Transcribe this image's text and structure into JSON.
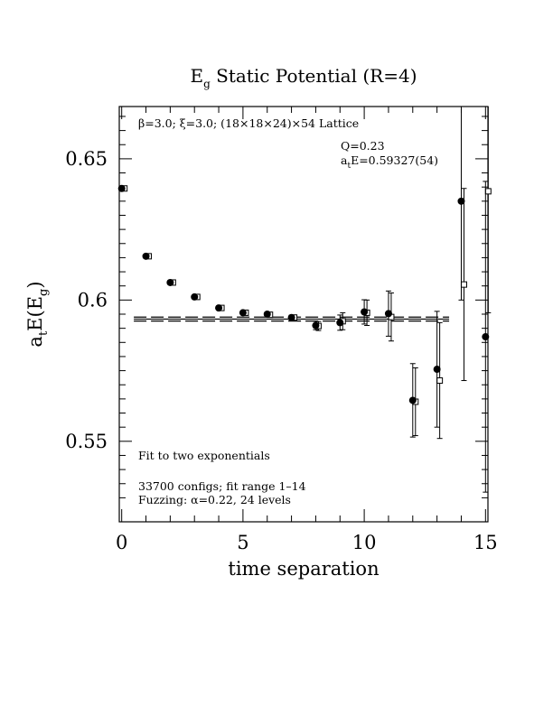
{
  "chart_data": {
    "type": "scatter",
    "title_main": "E",
    "title_sub": "g",
    "title_rest": " Static Potential (R=4)",
    "ylabel_main": "a",
    "ylabel_sub1": "t",
    "ylabel_mid": "E(E",
    "ylabel_sub2": "g",
    "ylabel_end": ")",
    "xlabel": "time separation",
    "lattice_label": "β=3.0; ξ=3.0; (18×18×24)×54 Lattice",
    "q_label": "Q=0.23",
    "energy_label_main": "a",
    "energy_label_sub": "t",
    "energy_label_rest": "E=0.59327(54)",
    "fit_label": "Fit to two exponentials",
    "configs_label": "33700 configs; fit range 1–14",
    "fuzzing_label": "Fuzzing: α=0.22, 24 levels",
    "xlim": [
      -0.1,
      15.1
    ],
    "ylim": [
      0.5215,
      0.6685
    ],
    "xticks": [
      0,
      5,
      10,
      15
    ],
    "xtick_labels": [
      "0",
      "5",
      "10",
      "15"
    ],
    "yticks": [
      0.55,
      0.6,
      0.65
    ],
    "ytick_labels": [
      "0.55",
      "0.6",
      "0.65"
    ],
    "fit_value": 0.59327,
    "fit_error": 0.00054,
    "fit_range": [
      0.5,
      13.5
    ],
    "series": [
      {
        "marker": "filled-circle",
        "x": [
          0,
          1,
          2,
          3,
          4,
          5,
          6,
          7,
          8,
          9,
          10,
          11,
          12,
          13,
          14,
          15
        ],
        "y": [
          0.6395,
          0.6155,
          0.6062,
          0.6011,
          0.5972,
          0.5955,
          0.595,
          0.5938,
          0.591,
          0.592,
          0.5958,
          0.5952,
          0.5645,
          0.5755,
          0.635,
          0.587
        ],
        "err": [
          0.0004,
          0.0004,
          0.0004,
          0.0004,
          0.0005,
          0.0005,
          0.0006,
          0.0008,
          0.0015,
          0.0027,
          0.0043,
          0.008,
          0.013,
          0.0205,
          0.035,
          0.055
        ]
      },
      {
        "marker": "open-square",
        "x": [
          0,
          1,
          2,
          3,
          4,
          5,
          6,
          7,
          8,
          9,
          10,
          11,
          12,
          13,
          14,
          15
        ],
        "y": [
          0.6395,
          0.6155,
          0.6062,
          0.6011,
          0.5972,
          0.5955,
          0.5948,
          0.5938,
          0.5908,
          0.5925,
          0.5955,
          0.594,
          0.564,
          0.5715,
          0.6055,
          0.6385
        ],
        "err": [
          0.0004,
          0.0004,
          0.0004,
          0.0004,
          0.0005,
          0.0005,
          0.0006,
          0.0009,
          0.0016,
          0.003,
          0.0045,
          0.0085,
          0.012,
          0.0205,
          0.034,
          0.043
        ]
      }
    ]
  }
}
